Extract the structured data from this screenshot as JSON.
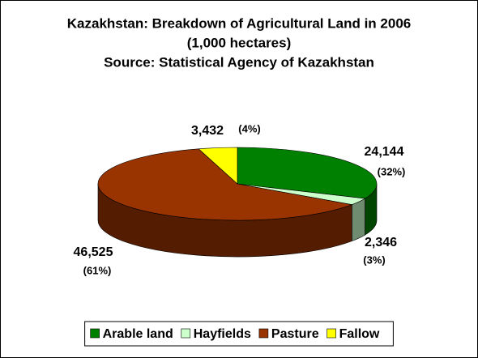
{
  "chart_data": {
    "type": "pie3d",
    "title": "Kazakhstan:  Breakdown of Agricultural Land in 2006",
    "subtitle": "(1,000 hectares)",
    "source": "Source:  Statistical Agency of Kazakhstan",
    "categories": [
      "Arable land",
      "Hayfields",
      "Pasture",
      "Fallow"
    ],
    "values": [
      24144,
      2346,
      46525,
      3432
    ],
    "value_labels": [
      "24,144",
      "2,346",
      "46,525",
      "3,432"
    ],
    "percent_labels": [
      "(32%)",
      "(3%)",
      "(61%)",
      "(4%)"
    ],
    "colors": [
      "#008000",
      "#ccffcc",
      "#993300",
      "#ffff00"
    ],
    "legend": "bottom"
  }
}
